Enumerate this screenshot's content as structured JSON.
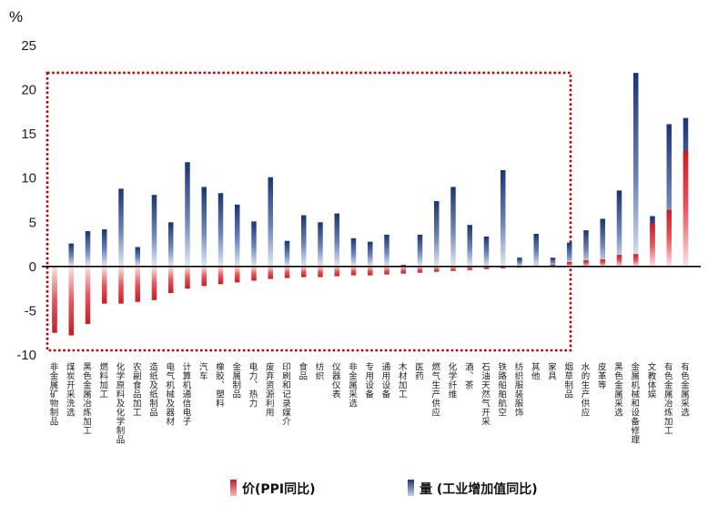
{
  "chart_data": {
    "type": "bar",
    "unit": "%",
    "ylim": [
      -10,
      25
    ],
    "yticks": [
      -10,
      -5,
      0,
      5,
      10,
      15,
      20,
      25
    ],
    "legend_position": "bottom",
    "highlight_box": "dotted red box around categories from 非金属矿物制品 to 家具",
    "colors": {
      "price": "#d21f26",
      "volume": "#1f3a78",
      "box": "#c00000"
    },
    "categories": [
      "非金属矿物制品",
      "煤炭开采洗选",
      "黑色金属冶炼加工",
      "燃料加工",
      "化学原料及化学制品",
      "农副食品加工",
      "造纸及纸制品",
      "电气机械及器材",
      "计算机通信电子",
      "汽车",
      "橡胶、塑料",
      "金属制品",
      "电力、热力",
      "废弃资源利用",
      "印刷和记录媒介",
      "食品",
      "纺织",
      "仪器仪表",
      "非金属采选",
      "专用设备",
      "通用设备",
      "木材加工",
      "医药",
      "燃气生产供应",
      "化学纤维",
      "酒、茶",
      "石油天然气开采",
      "铁路船舶航空",
      "纺织服装服饰",
      "其他",
      "家具",
      "烟草制品",
      "水的生产供应",
      "皮革等",
      "黑色金属采选",
      "金属机械和设备修理",
      "文教体娱",
      "有色金属冶炼加工",
      "有色金属采选"
    ],
    "series": [
      {
        "name": "价(PPI同比)",
        "values": [
          -7.5,
          -7.8,
          -6.5,
          -4.2,
          -4.2,
          -4.0,
          -3.8,
          -3.0,
          -2.5,
          -2.2,
          -2.0,
          -1.8,
          -1.6,
          -1.4,
          -1.3,
          -1.2,
          -1.2,
          -1.1,
          -1.0,
          -1.0,
          -0.9,
          -0.8,
          -0.7,
          -0.6,
          -0.5,
          -0.4,
          -0.3,
          -0.2,
          -0.1,
          0.1,
          0.2,
          0.5,
          0.7,
          0.8,
          1.3,
          1.4,
          4.9,
          6.4,
          13.1
        ]
      },
      {
        "name": "量 (工业增加值同比)",
        "values": [
          -6.3,
          2.6,
          4.0,
          4.2,
          8.8,
          2.2,
          8.1,
          5.0,
          11.8,
          9.0,
          8.3,
          7.0,
          5.1,
          10.1,
          2.9,
          5.8,
          5.0,
          6.0,
          3.2,
          2.8,
          3.6,
          0.2,
          3.6,
          7.4,
          9.0,
          4.7,
          3.4,
          10.9,
          1.0,
          3.7,
          1.0,
          2.7,
          4.1,
          5.4,
          8.6,
          21.9,
          5.7,
          16.1,
          16.8
        ]
      }
    ]
  }
}
